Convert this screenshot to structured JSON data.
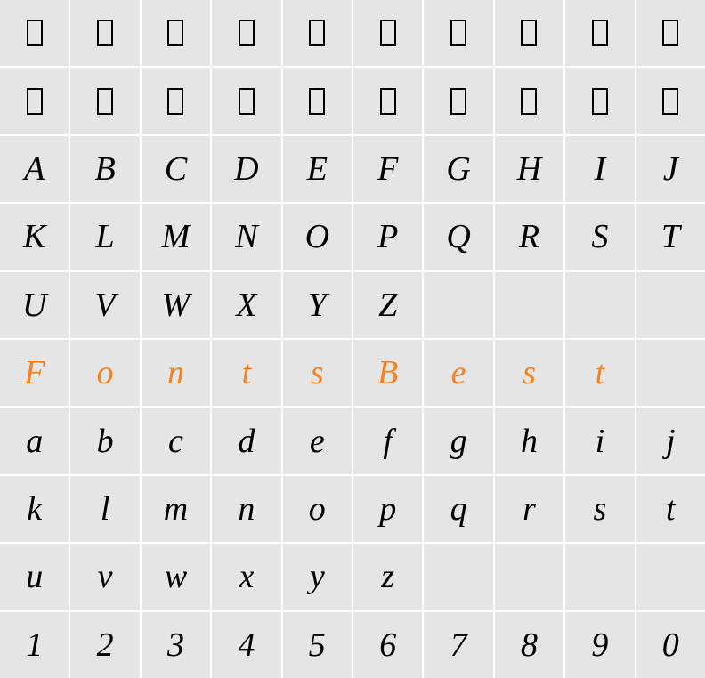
{
  "grid": {
    "columns": 10,
    "rows": 10,
    "background_color": "#e5e5e5",
    "gap_color": "#ffffff",
    "font_family": "Times New Roman",
    "font_style": "italic",
    "font_size": 38,
    "text_color": "#000000",
    "accent_color": "#f58220",
    "missing_glyph": {
      "width": 18,
      "height": 30,
      "border_width": 2.5,
      "border_color": "#000000"
    },
    "cells": [
      [
        {
          "t": "missing"
        },
        {
          "t": "missing"
        },
        {
          "t": "missing"
        },
        {
          "t": "missing"
        },
        {
          "t": "missing"
        },
        {
          "t": "missing"
        },
        {
          "t": "missing"
        },
        {
          "t": "missing"
        },
        {
          "t": "missing"
        },
        {
          "t": "missing"
        }
      ],
      [
        {
          "t": "missing"
        },
        {
          "t": "missing"
        },
        {
          "t": "missing"
        },
        {
          "t": "missing"
        },
        {
          "t": "missing"
        },
        {
          "t": "missing"
        },
        {
          "t": "missing"
        },
        {
          "t": "missing"
        },
        {
          "t": "missing"
        },
        {
          "t": "missing"
        }
      ],
      [
        {
          "t": "char",
          "v": "A"
        },
        {
          "t": "char",
          "v": "B"
        },
        {
          "t": "char",
          "v": "C"
        },
        {
          "t": "char",
          "v": "D"
        },
        {
          "t": "char",
          "v": "E"
        },
        {
          "t": "char",
          "v": "F"
        },
        {
          "t": "char",
          "v": "G"
        },
        {
          "t": "char",
          "v": "H"
        },
        {
          "t": "char",
          "v": "I"
        },
        {
          "t": "char",
          "v": "J"
        }
      ],
      [
        {
          "t": "char",
          "v": "K"
        },
        {
          "t": "char",
          "v": "L"
        },
        {
          "t": "char",
          "v": "M"
        },
        {
          "t": "char",
          "v": "N"
        },
        {
          "t": "char",
          "v": "O"
        },
        {
          "t": "char",
          "v": "P"
        },
        {
          "t": "char",
          "v": "Q"
        },
        {
          "t": "char",
          "v": "R"
        },
        {
          "t": "char",
          "v": "S"
        },
        {
          "t": "char",
          "v": "T"
        }
      ],
      [
        {
          "t": "char",
          "v": "U"
        },
        {
          "t": "char",
          "v": "V"
        },
        {
          "t": "char",
          "v": "W"
        },
        {
          "t": "char",
          "v": "X"
        },
        {
          "t": "char",
          "v": "Y"
        },
        {
          "t": "char",
          "v": "Z"
        },
        {
          "t": "empty"
        },
        {
          "t": "empty"
        },
        {
          "t": "empty"
        },
        {
          "t": "empty"
        }
      ],
      [
        {
          "t": "accent",
          "v": "F"
        },
        {
          "t": "accent",
          "v": "o"
        },
        {
          "t": "accent",
          "v": "n"
        },
        {
          "t": "accent",
          "v": "t"
        },
        {
          "t": "accent",
          "v": "s"
        },
        {
          "t": "accent",
          "v": "B"
        },
        {
          "t": "accent",
          "v": "e"
        },
        {
          "t": "accent",
          "v": "s"
        },
        {
          "t": "accent",
          "v": "t"
        },
        {
          "t": "empty"
        }
      ],
      [
        {
          "t": "char",
          "v": "a"
        },
        {
          "t": "char",
          "v": "b"
        },
        {
          "t": "char",
          "v": "c"
        },
        {
          "t": "char",
          "v": "d"
        },
        {
          "t": "char",
          "v": "e"
        },
        {
          "t": "char",
          "v": "f"
        },
        {
          "t": "char",
          "v": "g"
        },
        {
          "t": "char",
          "v": "h"
        },
        {
          "t": "char",
          "v": "i"
        },
        {
          "t": "char",
          "v": "j"
        }
      ],
      [
        {
          "t": "char",
          "v": "k"
        },
        {
          "t": "char",
          "v": "l"
        },
        {
          "t": "char",
          "v": "m"
        },
        {
          "t": "char",
          "v": "n"
        },
        {
          "t": "char",
          "v": "o"
        },
        {
          "t": "char",
          "v": "p"
        },
        {
          "t": "char",
          "v": "q"
        },
        {
          "t": "char",
          "v": "r"
        },
        {
          "t": "char",
          "v": "s"
        },
        {
          "t": "char",
          "v": "t"
        }
      ],
      [
        {
          "t": "char",
          "v": "u"
        },
        {
          "t": "char",
          "v": "v"
        },
        {
          "t": "char",
          "v": "w"
        },
        {
          "t": "char",
          "v": "x"
        },
        {
          "t": "char",
          "v": "y"
        },
        {
          "t": "char",
          "v": "z"
        },
        {
          "t": "empty"
        },
        {
          "t": "empty"
        },
        {
          "t": "empty"
        },
        {
          "t": "empty"
        }
      ],
      [
        {
          "t": "char",
          "v": "1"
        },
        {
          "t": "char",
          "v": "2"
        },
        {
          "t": "char",
          "v": "3"
        },
        {
          "t": "char",
          "v": "4"
        },
        {
          "t": "char",
          "v": "5"
        },
        {
          "t": "char",
          "v": "6"
        },
        {
          "t": "char",
          "v": "7"
        },
        {
          "t": "char",
          "v": "8"
        },
        {
          "t": "char",
          "v": "9"
        },
        {
          "t": "char",
          "v": "0"
        }
      ]
    ]
  }
}
